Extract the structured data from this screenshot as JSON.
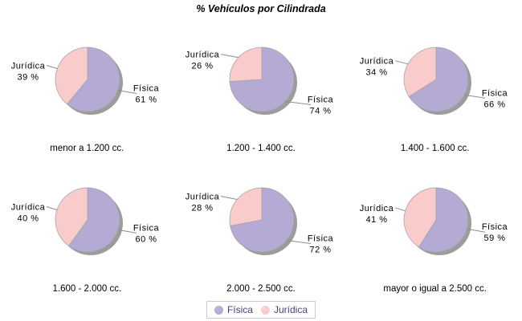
{
  "title": "% Vehículos por Cilindrada",
  "legend": {
    "position": "bottom",
    "items": [
      {
        "label": "Física",
        "color": "#b4aad3"
      },
      {
        "label": "Jurídica",
        "color": "#f9cbcb"
      }
    ]
  },
  "colors": {
    "fisica": "#b4aad3",
    "juridica": "#f9cbcb",
    "shadow": "#9c9c9c",
    "slice_outline": "#a3a3a3",
    "leader_line": "#8c8c8c",
    "text": "#000000",
    "legend_text": "#4b3b7d",
    "legend_border": "#c9c9d6"
  },
  "chart_data": {
    "type": "pie",
    "title": "% Vehículos por Cilindrada",
    "series_labels": [
      "Física",
      "Jurídica"
    ],
    "legend_position": "bottom",
    "value_suffix": " %",
    "pies": [
      {
        "category": "menor a 1.200 cc.",
        "fisica_pct": 61,
        "juridica_pct": 39
      },
      {
        "category": "1.200 - 1.400 cc.",
        "fisica_pct": 74,
        "juridica_pct": 26
      },
      {
        "category": "1.400 - 1.600 cc.",
        "fisica_pct": 66,
        "juridica_pct": 34
      },
      {
        "category": "1.600 - 2.000 cc.",
        "fisica_pct": 60,
        "juridica_pct": 40
      },
      {
        "category": "2.000 - 2.500 cc.",
        "fisica_pct": 72,
        "juridica_pct": 28
      },
      {
        "category": "mayor o igual a 2.500 cc.",
        "fisica_pct": 59,
        "juridica_pct": 41
      }
    ]
  }
}
